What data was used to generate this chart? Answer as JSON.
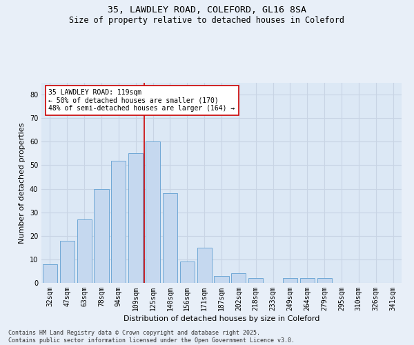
{
  "title_line1": "35, LAWDLEY ROAD, COLEFORD, GL16 8SA",
  "title_line2": "Size of property relative to detached houses in Coleford",
  "xlabel": "Distribution of detached houses by size in Coleford",
  "ylabel": "Number of detached properties",
  "categories": [
    "32sqm",
    "47sqm",
    "63sqm",
    "78sqm",
    "94sqm",
    "109sqm",
    "125sqm",
    "140sqm",
    "156sqm",
    "171sqm",
    "187sqm",
    "202sqm",
    "218sqm",
    "233sqm",
    "249sqm",
    "264sqm",
    "279sqm",
    "295sqm",
    "310sqm",
    "326sqm",
    "341sqm"
  ],
  "values": [
    8,
    18,
    27,
    40,
    52,
    55,
    60,
    38,
    9,
    15,
    3,
    4,
    2,
    0,
    2,
    2,
    2,
    0,
    0,
    0,
    0
  ],
  "bar_color": "#c5d8ef",
  "bar_edge_color": "#6fa8d6",
  "bar_linewidth": 0.7,
  "vline_color": "#cc0000",
  "vline_linewidth": 1.2,
  "vline_position": 5.5,
  "annotation_text": "35 LAWDLEY ROAD: 119sqm\n← 50% of detached houses are smaller (170)\n48% of semi-detached houses are larger (164) →",
  "annotation_box_facecolor": "white",
  "annotation_box_edgecolor": "#cc0000",
  "ylim": [
    0,
    85
  ],
  "yticks": [
    0,
    10,
    20,
    30,
    40,
    50,
    60,
    70,
    80
  ],
  "bg_color": "#e8eff8",
  "plot_bg_color": "#dce8f5",
  "grid_color": "#c8d4e4",
  "footer_text": "Contains HM Land Registry data © Crown copyright and database right 2025.\nContains public sector information licensed under the Open Government Licence v3.0.",
  "title_fontsize": 9.5,
  "subtitle_fontsize": 8.5,
  "axis_label_fontsize": 8,
  "tick_fontsize": 7,
  "annotation_fontsize": 7,
  "footer_fontsize": 6
}
